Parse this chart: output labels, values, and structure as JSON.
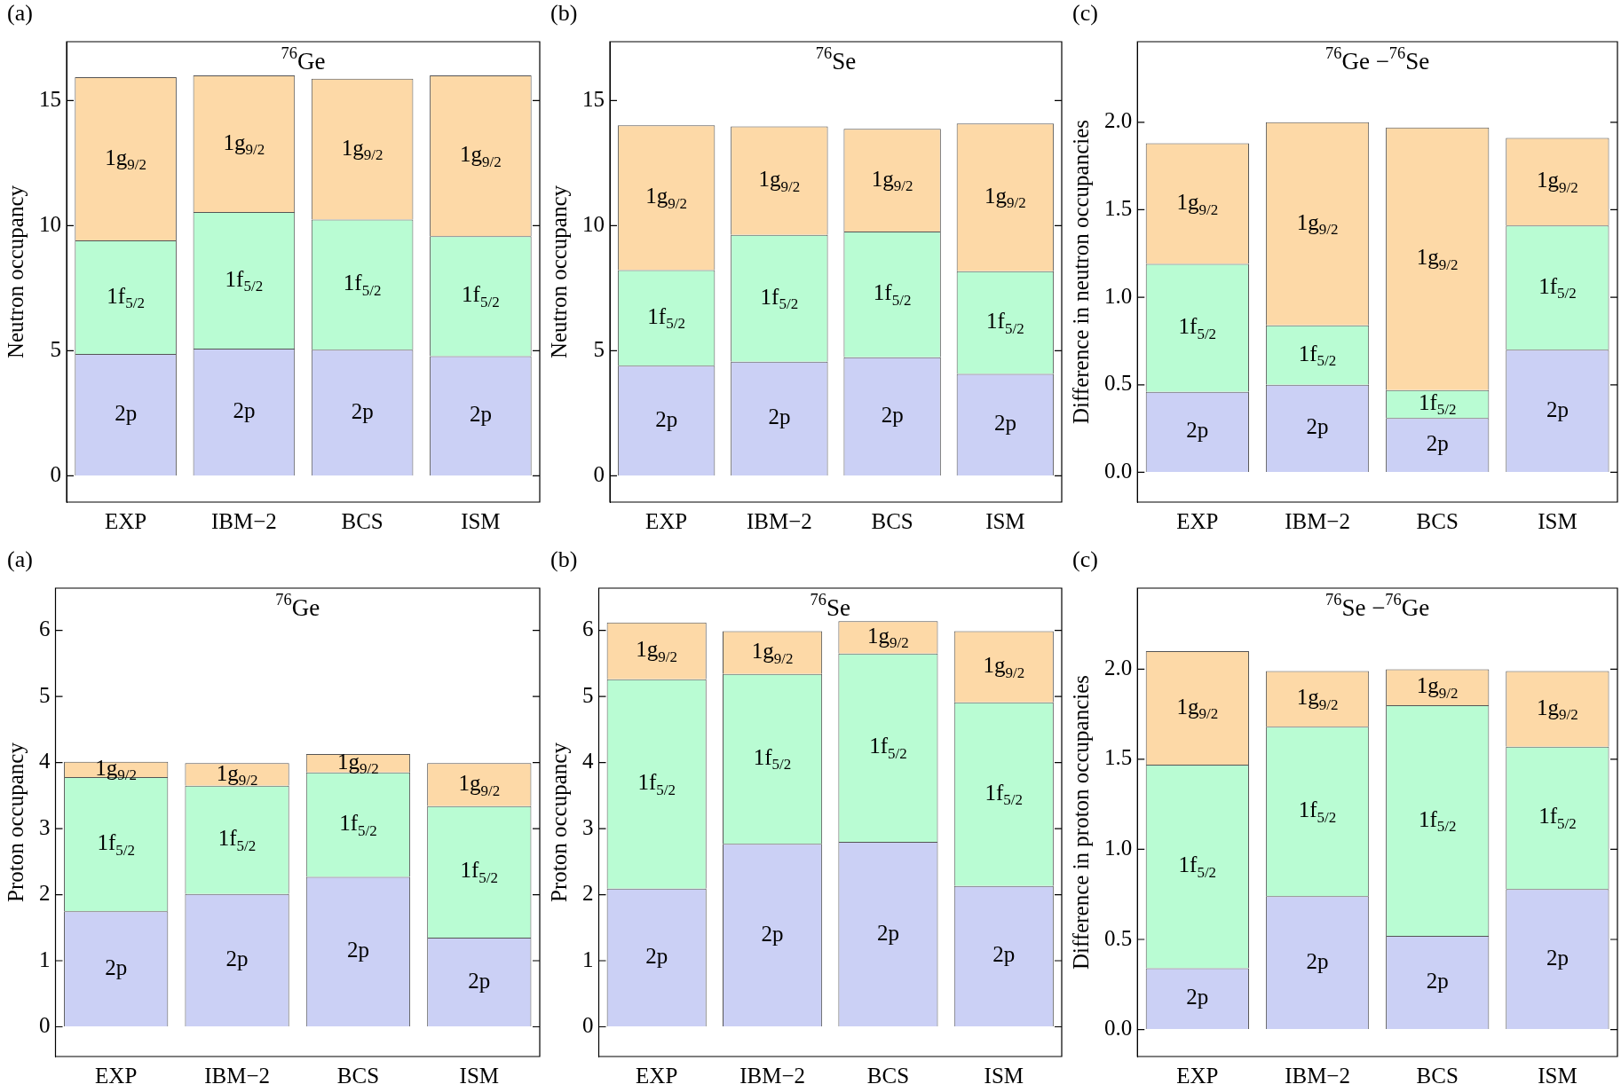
{
  "chart_data": [
    {
      "type": "bar",
      "stacked": true,
      "title": "$^{76}$Ge",
      "ylabel": "Neutron occupancy",
      "annotations": [
        "(a)"
      ],
      "categories": [
        "EXP",
        "IBM−2",
        "BCS",
        "ISM"
      ],
      "ylim": [
        -1.05,
        17.35
      ],
      "yticks": [
        0,
        5,
        10,
        15
      ],
      "series": [
        {
          "name": "2p",
          "color": "#cbd0f5",
          "values": [
            4.87,
            5.08,
            5.04,
            4.78
          ]
        },
        {
          "name": "1f$_{5/2}$",
          "color": "#b9fcd3",
          "values": [
            4.54,
            5.46,
            5.2,
            4.8
          ]
        },
        {
          "name": "1g$_{9/2}$",
          "color": "#fdd9a7",
          "values": [
            6.52,
            5.46,
            5.63,
            6.42
          ]
        }
      ]
    },
    {
      "type": "bar",
      "stacked": true,
      "title": "$^{76}$Se",
      "ylabel": "Neutron occupancy",
      "annotations": [
        "(b)"
      ],
      "categories": [
        "EXP",
        "IBM−2",
        "BCS",
        "ISM"
      ],
      "ylim": [
        -1.05,
        17.35
      ],
      "yticks": [
        0,
        5,
        10,
        15
      ],
      "series": [
        {
          "name": "2p",
          "color": "#cbd0f5",
          "values": [
            4.4,
            4.56,
            4.74,
            4.07
          ]
        },
        {
          "name": "1f$_{5/2}$",
          "color": "#b9fcd3",
          "values": [
            3.82,
            5.07,
            5.02,
            4.11
          ]
        },
        {
          "name": "1g$_{9/2}$",
          "color": "#fdd9a7",
          "values": [
            5.79,
            4.33,
            4.11,
            5.9
          ]
        }
      ]
    },
    {
      "type": "bar",
      "stacked": true,
      "title": "$^{76}$Ge −$^{76}$Se",
      "ylabel": "Difference in neutron occupancies",
      "annotations": [
        "(c)"
      ],
      "categories": [
        "EXP",
        "IBM−2",
        "BCS",
        "ISM"
      ],
      "ylim": [
        -0.17,
        2.46
      ],
      "yticks": [
        {
          "value": 0,
          "label": "0.0"
        },
        {
          "value": 0.5,
          "label": "0.5"
        },
        {
          "value": 1,
          "label": "1.0"
        },
        {
          "value": 1.5,
          "label": "1.5"
        },
        {
          "value": 2,
          "label": "2.0"
        }
      ],
      "series": [
        {
          "name": "2p",
          "color": "#cbd0f5",
          "values": [
            0.46,
            0.5,
            0.31,
            0.7
          ]
        },
        {
          "name": "1f$_{5/2}$",
          "color": "#b9fcd3",
          "values": [
            0.73,
            0.34,
            0.16,
            0.71
          ]
        },
        {
          "name": "1g$_{9/2}$",
          "color": "#fdd9a7",
          "values": [
            0.69,
            1.16,
            1.5,
            0.5
          ]
        }
      ]
    },
    {
      "type": "bar",
      "stacked": true,
      "title": "$^{76}$Ge",
      "ylabel": "Proton occupancy",
      "annotations": [
        "(a)"
      ],
      "categories": [
        "EXP",
        "IBM−2",
        "BCS",
        "ISM"
      ],
      "ylim": [
        -0.45,
        6.64
      ],
      "yticks": [
        0,
        1,
        2,
        3,
        4,
        5,
        6
      ],
      "series": [
        {
          "name": "2p",
          "color": "#cbd0f5",
          "values": [
            1.75,
            2.01,
            2.27,
            1.35
          ]
        },
        {
          "name": "1f$_{5/2}$",
          "color": "#b9fcd3",
          "values": [
            2.03,
            1.64,
            1.58,
            1.99
          ]
        },
        {
          "name": "1g$_{9/2}$",
          "color": "#fdd9a7",
          "values": [
            0.23,
            0.34,
            0.28,
            0.65
          ]
        }
      ]
    },
    {
      "type": "bar",
      "stacked": true,
      "title": "$^{76}$Se",
      "ylabel": "Proton occupancy",
      "annotations": [
        "(b)"
      ],
      "categories": [
        "EXP",
        "IBM−2",
        "BCS",
        "ISM"
      ],
      "ylim": [
        -0.45,
        6.64
      ],
      "yticks": [
        0,
        1,
        2,
        3,
        4,
        5,
        6
      ],
      "series": [
        {
          "name": "2p",
          "color": "#cbd0f5",
          "values": [
            2.09,
            2.77,
            2.8,
            2.13
          ]
        },
        {
          "name": "1f$_{5/2}$",
          "color": "#b9fcd3",
          "values": [
            3.17,
            2.57,
            2.85,
            2.78
          ]
        },
        {
          "name": "1g$_{9/2}$",
          "color": "#fdd9a7",
          "values": [
            0.86,
            0.65,
            0.49,
            1.08
          ]
        }
      ]
    },
    {
      "type": "bar",
      "stacked": true,
      "title": "$^{76}$Se −$^{76}$Ge",
      "ylabel": "Difference in proton occupancies",
      "annotations": [
        "(c)"
      ],
      "categories": [
        "EXP",
        "IBM−2",
        "BCS",
        "ISM"
      ],
      "ylim": [
        -0.15,
        2.45
      ],
      "yticks": [
        {
          "value": 0,
          "label": "0.0"
        },
        {
          "value": 0.5,
          "label": "0.5"
        },
        {
          "value": 1,
          "label": "1.0"
        },
        {
          "value": 1.5,
          "label": "1.5"
        },
        {
          "value": 2,
          "label": "2.0"
        }
      ],
      "series": [
        {
          "name": "2p",
          "color": "#cbd0f5",
          "values": [
            0.34,
            0.74,
            0.52,
            0.78
          ]
        },
        {
          "name": "1f$_{5/2}$",
          "color": "#b9fcd3",
          "values": [
            1.13,
            0.94,
            1.28,
            0.79
          ]
        },
        {
          "name": "1g$_{9/2}$",
          "color": "#fdd9a7",
          "values": [
            0.63,
            0.31,
            0.2,
            0.42
          ]
        }
      ]
    }
  ]
}
